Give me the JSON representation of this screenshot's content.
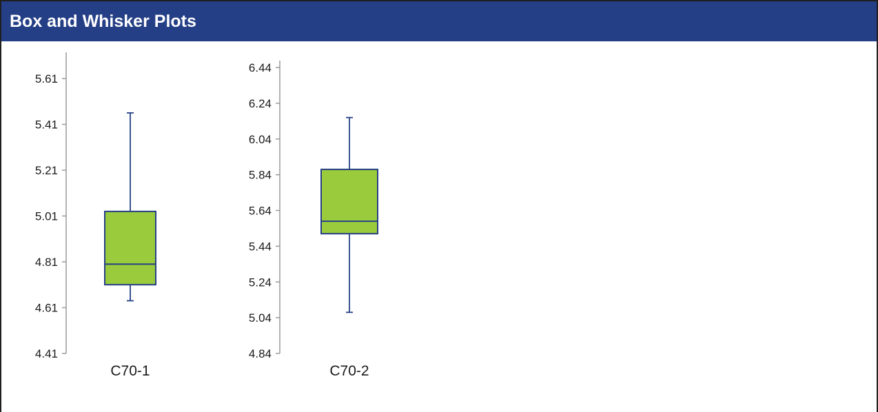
{
  "header": {
    "title": "Box and Whisker Plots"
  },
  "colors": {
    "header_bg": "#253f86",
    "box_fill": "#9acb3c",
    "box_stroke": "#253f86",
    "axis": "#999999"
  },
  "chart_data": [
    {
      "type": "box",
      "category": "C70-1",
      "ylim": [
        4.41,
        5.71
      ],
      "yticks": [
        "4.41",
        "4.61",
        "4.81",
        "5.01",
        "5.21",
        "5.41",
        "5.61"
      ],
      "min": 4.64,
      "q1": 4.71,
      "median": 4.8,
      "q3": 5.03,
      "max": 5.46
    },
    {
      "type": "box",
      "category": "C70-2",
      "ylim": [
        4.84,
        6.46
      ],
      "yticks": [
        "4.84",
        "5.04",
        "5.24",
        "5.44",
        "5.64",
        "5.84",
        "6.04",
        "6.24",
        "6.44"
      ],
      "min": 5.07,
      "q1": 5.51,
      "median": 5.58,
      "q3": 5.87,
      "max": 6.16
    }
  ]
}
